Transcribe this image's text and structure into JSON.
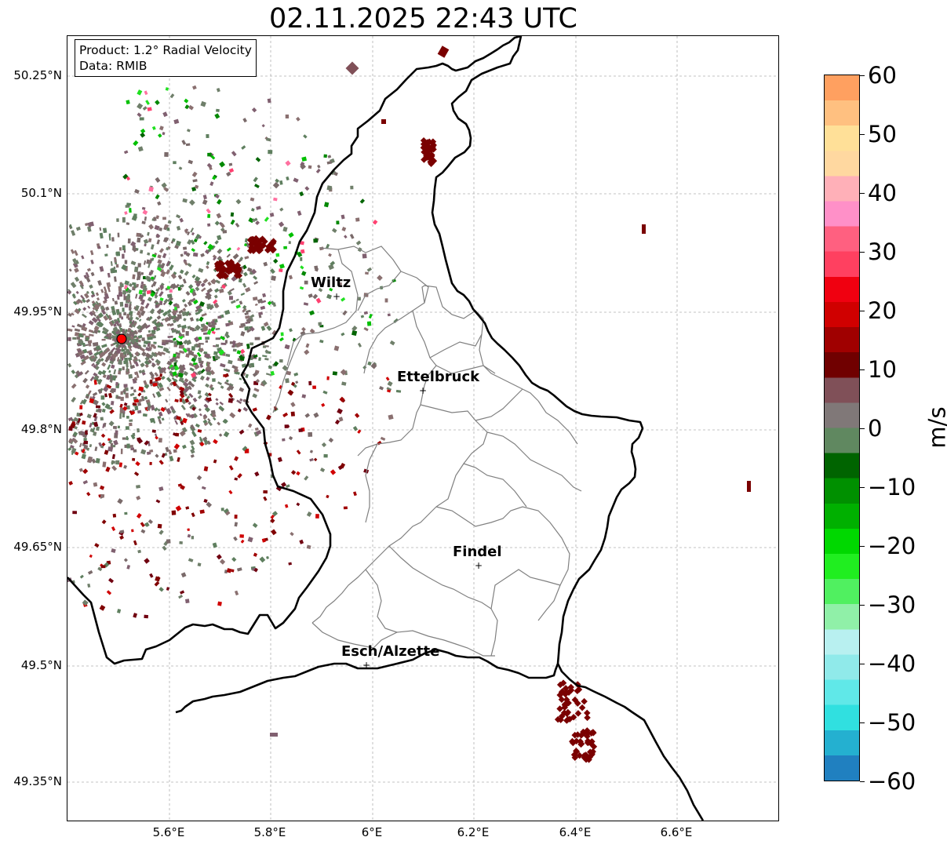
{
  "title": "02.11.2025 22:43 UTC",
  "info": {
    "product": "Product: 1.2° Radial Velocity",
    "data": "Data: RMIB"
  },
  "lat_labels": [
    "50.25°N",
    "50.1°N",
    "49.95°N",
    "49.8°N",
    "49.65°N",
    "49.5°N",
    "49.35°N"
  ],
  "lon_labels": [
    "5.6°E",
    "5.8°E",
    "6°E",
    "6.2°E",
    "6.4°E",
    "6.6°E"
  ],
  "cities": [
    {
      "name": "Wiltz"
    },
    {
      "name": "Ettelbruck"
    },
    {
      "name": "Findel"
    },
    {
      "name": "Esch/Alzette"
    }
  ],
  "colorbar": {
    "unit": "m/s",
    "tick_labels": [
      "60",
      "50",
      "40",
      "30",
      "20",
      "10",
      "0",
      "−10",
      "−20",
      "−30",
      "−40",
      "−50",
      "−60"
    ],
    "min": -60,
    "max": 60,
    "colors": [
      "#2080c0",
      "#24b0d0",
      "#30e0e0",
      "#60e8e8",
      "#90eaea",
      "#b8f0f0",
      "#90f0a8",
      "#50f060",
      "#20ee20",
      "#00d800",
      "#00b000",
      "#009000",
      "#006400",
      "#608860",
      "#807878",
      "#805058",
      "#700000",
      "#a00000",
      "#d00000",
      "#f00010",
      "#ff4060",
      "#ff6080",
      "#ff90c8",
      "#ffb0b8",
      "#ffd8a0",
      "#ffe098",
      "#ffc080",
      "#ffa060"
    ]
  },
  "radar_site": {
    "color": "#ff0000"
  }
}
